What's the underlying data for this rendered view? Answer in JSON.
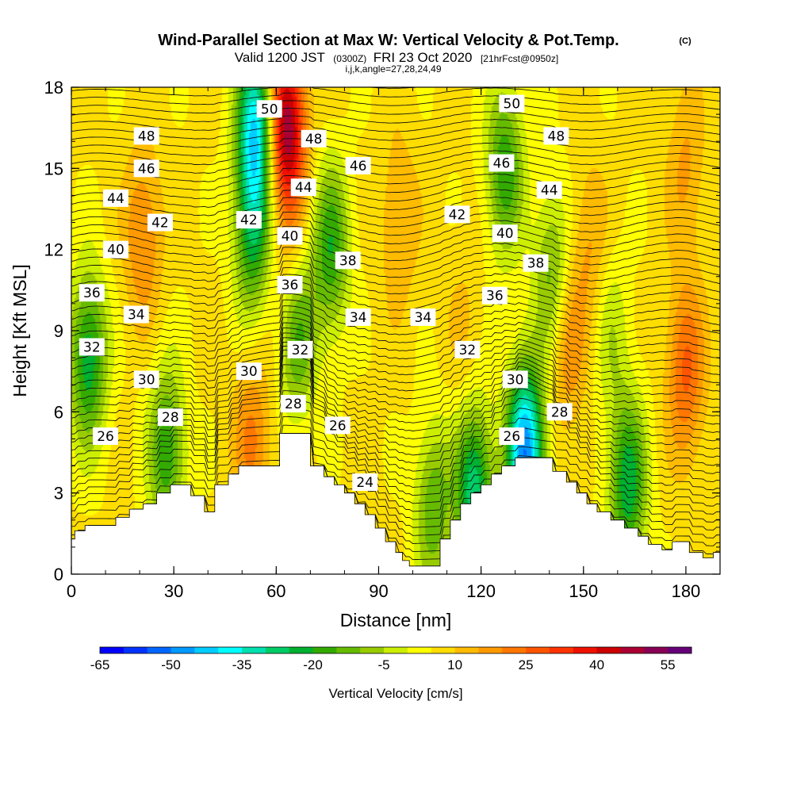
{
  "title": {
    "main": "Wind-Parallel Section at Max W: Vertical Velocity & Pot.Temp.",
    "copyright": "(C)",
    "valid_prefix": "Valid 1200 JST",
    "utc": "(0300Z)",
    "valid_date": "FRI 23 Oct 2020",
    "forecast": "[21hrFcst@0950z]",
    "indices": "i,j,k,angle=27,28,24,49"
  },
  "chart_data": {
    "type": "heatmap",
    "xlabel": "Distance [nm]",
    "ylabel": "Height [Kft MSL]",
    "xlim": [
      0,
      190
    ],
    "ylim": [
      0,
      18
    ],
    "x_ticks": [
      "0",
      "30",
      "60",
      "90",
      "120",
      "150",
      "180"
    ],
    "y_ticks": [
      "0",
      "3",
      "6",
      "9",
      "12",
      "15",
      "18"
    ],
    "colorbar": {
      "label": "Vertical Velocity [cm/s]",
      "levels": [
        -65,
        -60,
        -55,
        -50,
        -45,
        -40,
        -35,
        -30,
        -25,
        -20,
        -15,
        -10,
        -5,
        0,
        5,
        10,
        15,
        20,
        25,
        30,
        35,
        40,
        45,
        50,
        55,
        60
      ],
      "tick_labels": [
        "-65",
        "-50",
        "-35",
        "-20",
        "-5",
        "10",
        "25",
        "40",
        "55"
      ],
      "colors": [
        "#0000ff",
        "#0033ff",
        "#0066ff",
        "#0099ff",
        "#00ccff",
        "#00ffff",
        "#00e0b0",
        "#00cc66",
        "#00b030",
        "#33aa00",
        "#66bb00",
        "#99cc00",
        "#ccee00",
        "#ffff00",
        "#ffdd00",
        "#ffbb00",
        "#ff9900",
        "#ff7700",
        "#ff5500",
        "#ff3300",
        "#ee1100",
        "#cc0000",
        "#aa0033",
        "#880055",
        "#660077"
      ]
    },
    "terrain_nm_kft": [
      [
        0,
        1.3
      ],
      [
        1,
        1.3
      ],
      [
        1,
        1.6
      ],
      [
        4,
        1.6
      ],
      [
        4,
        1.8
      ],
      [
        13,
        1.8
      ],
      [
        13,
        2.1
      ],
      [
        17,
        2.1
      ],
      [
        17,
        2.4
      ],
      [
        21,
        2.4
      ],
      [
        21,
        2.6
      ],
      [
        25,
        2.6
      ],
      [
        25,
        3.0
      ],
      [
        29,
        3.0
      ],
      [
        29,
        3.3
      ],
      [
        35,
        3.3
      ],
      [
        35,
        2.9
      ],
      [
        39,
        2.9
      ],
      [
        39,
        2.3
      ],
      [
        42,
        2.3
      ],
      [
        42,
        3.3
      ],
      [
        46,
        3.3
      ],
      [
        46,
        3.7
      ],
      [
        49,
        3.7
      ],
      [
        49,
        4.0
      ],
      [
        61,
        4.0
      ],
      [
        61,
        5.2
      ],
      [
        70,
        5.2
      ],
      [
        70,
        4.0
      ],
      [
        74,
        4.0
      ],
      [
        74,
        3.6
      ],
      [
        77,
        3.6
      ],
      [
        77,
        3.3
      ],
      [
        80,
        3.3
      ],
      [
        80,
        3.0
      ],
      [
        83,
        3.0
      ],
      [
        83,
        2.6
      ],
      [
        86,
        2.6
      ],
      [
        86,
        2.2
      ],
      [
        89,
        2.2
      ],
      [
        89,
        1.7
      ],
      [
        92,
        1.7
      ],
      [
        92,
        1.2
      ],
      [
        95,
        1.2
      ],
      [
        95,
        0.8
      ],
      [
        97,
        0.8
      ],
      [
        97,
        0.5
      ],
      [
        99,
        0.5
      ],
      [
        99,
        0.3
      ],
      [
        108,
        0.3
      ],
      [
        108,
        1.3
      ],
      [
        111,
        1.3
      ],
      [
        111,
        2.0
      ],
      [
        114,
        2.0
      ],
      [
        114,
        2.6
      ],
      [
        117,
        2.6
      ],
      [
        117,
        3.0
      ],
      [
        120,
        3.0
      ],
      [
        120,
        3.3
      ],
      [
        123,
        3.3
      ],
      [
        123,
        3.7
      ],
      [
        126,
        3.7
      ],
      [
        126,
        4.0
      ],
      [
        130,
        4.0
      ],
      [
        130,
        4.3
      ],
      [
        141,
        4.3
      ],
      [
        141,
        3.8
      ],
      [
        145,
        3.8
      ],
      [
        145,
        3.4
      ],
      [
        148,
        3.4
      ],
      [
        148,
        3.0
      ],
      [
        151,
        3.0
      ],
      [
        151,
        2.6
      ],
      [
        154,
        2.6
      ],
      [
        154,
        2.3
      ],
      [
        158,
        2.3
      ],
      [
        158,
        2.0
      ],
      [
        162,
        2.0
      ],
      [
        162,
        1.7
      ],
      [
        166,
        1.7
      ],
      [
        166,
        1.4
      ],
      [
        169,
        1.4
      ],
      [
        169,
        1.1
      ],
      [
        173,
        1.1
      ],
      [
        173,
        0.9
      ],
      [
        176,
        0.9
      ],
      [
        176,
        1.2
      ],
      [
        181,
        1.2
      ],
      [
        181,
        0.8
      ],
      [
        185,
        0.8
      ],
      [
        185,
        0.6
      ],
      [
        188,
        0.6
      ],
      [
        188,
        0.8
      ],
      [
        190,
        0.8
      ]
    ],
    "updraft_cores": [
      {
        "x": 21,
        "z": 12.5,
        "w": 20
      },
      {
        "x": 53,
        "z": 5.0,
        "w": 20
      },
      {
        "x": 63,
        "z": 16.5,
        "w": 50
      },
      {
        "x": 64,
        "z": 11.0,
        "w": 15
      },
      {
        "x": 96,
        "z": 13.0,
        "w": 15
      },
      {
        "x": 115,
        "z": 9.0,
        "w": 10
      },
      {
        "x": 152,
        "z": 12.0,
        "w": 15
      },
      {
        "x": 145,
        "z": 8.5,
        "w": 20
      },
      {
        "x": 180,
        "z": 7.5,
        "w": 25
      },
      {
        "x": 180,
        "z": 15.0,
        "w": 15
      }
    ],
    "downdraft_cores": [
      {
        "x": 5,
        "z": 8.0,
        "w": -25
      },
      {
        "x": 28,
        "z": 4.5,
        "w": -20
      },
      {
        "x": 54,
        "z": 16.5,
        "w": -40
      },
      {
        "x": 53,
        "z": 12.5,
        "w": -20
      },
      {
        "x": 66,
        "z": 9.0,
        "w": -20
      },
      {
        "x": 76,
        "z": 12.0,
        "w": -20
      },
      {
        "x": 106,
        "z": 2.5,
        "w": -15
      },
      {
        "x": 118,
        "z": 3.0,
        "w": -30
      },
      {
        "x": 133,
        "z": 4.5,
        "w": -50
      },
      {
        "x": 127,
        "z": 15.0,
        "w": -20
      },
      {
        "x": 141,
        "z": 11.0,
        "w": -15
      },
      {
        "x": 163,
        "z": 3.3,
        "w": -25
      },
      {
        "x": 158,
        "z": 9.0,
        "w": -5
      }
    ],
    "theta_contour_labels": [
      {
        "text": "48",
        "x": 22,
        "z": 16.2
      },
      {
        "text": "46",
        "x": 22,
        "z": 15.0
      },
      {
        "text": "44",
        "x": 13,
        "z": 13.9
      },
      {
        "text": "42",
        "x": 26,
        "z": 13.0
      },
      {
        "text": "40",
        "x": 13,
        "z": 12.0
      },
      {
        "text": "36",
        "x": 6,
        "z": 10.4
      },
      {
        "text": "34",
        "x": 19,
        "z": 9.6
      },
      {
        "text": "32",
        "x": 6,
        "z": 8.4
      },
      {
        "text": "30",
        "x": 22,
        "z": 7.2
      },
      {
        "text": "28",
        "x": 29,
        "z": 5.8
      },
      {
        "text": "26",
        "x": 10,
        "z": 5.1
      },
      {
        "text": "50",
        "x": 58,
        "z": 17.2
      },
      {
        "text": "48",
        "x": 71,
        "z": 16.1
      },
      {
        "text": "42",
        "x": 52,
        "z": 13.1
      },
      {
        "text": "44",
        "x": 68,
        "z": 14.3
      },
      {
        "text": "40",
        "x": 64,
        "z": 12.5
      },
      {
        "text": "36",
        "x": 64,
        "z": 10.7
      },
      {
        "text": "30",
        "x": 52,
        "z": 7.5
      },
      {
        "text": "32",
        "x": 67,
        "z": 8.3
      },
      {
        "text": "28",
        "x": 65,
        "z": 6.3
      },
      {
        "text": "38",
        "x": 81,
        "z": 11.6
      },
      {
        "text": "46",
        "x": 84,
        "z": 15.1
      },
      {
        "text": "34",
        "x": 84,
        "z": 9.5
      },
      {
        "text": "26",
        "x": 78,
        "z": 5.5
      },
      {
        "text": "24",
        "x": 86,
        "z": 3.4
      },
      {
        "text": "34",
        "x": 103,
        "z": 9.5
      },
      {
        "text": "42",
        "x": 113,
        "z": 13.3
      },
      {
        "text": "32",
        "x": 116,
        "z": 8.3
      },
      {
        "text": "36",
        "x": 124,
        "z": 10.3
      },
      {
        "text": "40",
        "x": 127,
        "z": 12.6
      },
      {
        "text": "46",
        "x": 126,
        "z": 15.2
      },
      {
        "text": "50",
        "x": 129,
        "z": 17.4
      },
      {
        "text": "30",
        "x": 130,
        "z": 7.2
      },
      {
        "text": "26",
        "x": 129,
        "z": 5.1
      },
      {
        "text": "38",
        "x": 136,
        "z": 11.5
      },
      {
        "text": "44",
        "x": 140,
        "z": 14.2
      },
      {
        "text": "48",
        "x": 142,
        "z": 16.2
      },
      {
        "text": "28",
        "x": 143,
        "z": 6.0
      }
    ]
  }
}
